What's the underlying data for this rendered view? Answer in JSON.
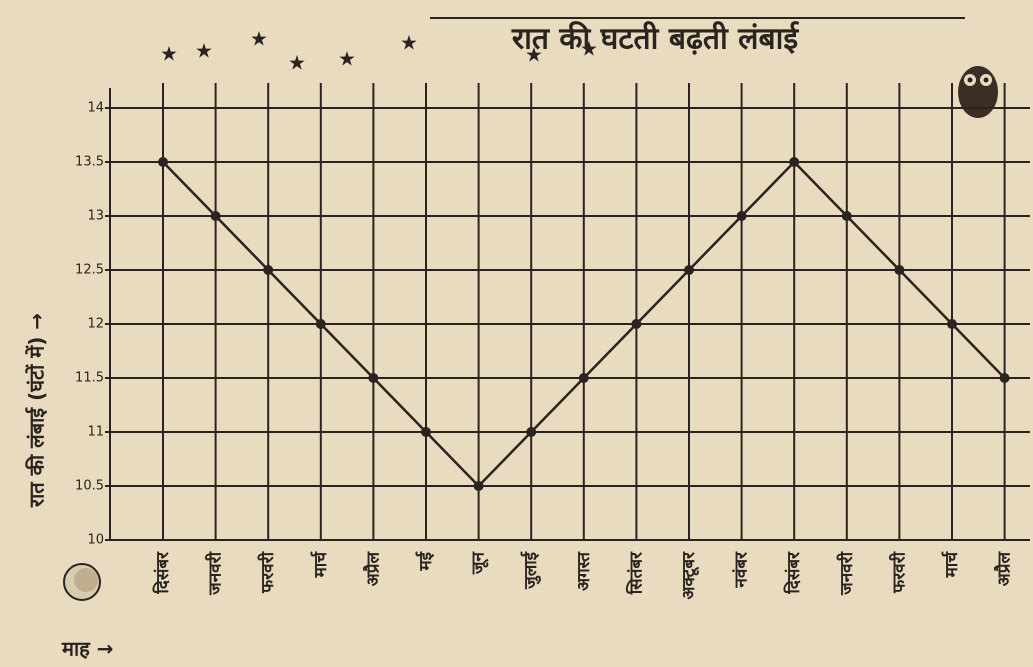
{
  "chart_data": {
    "type": "line",
    "title": "रात की घटती बढ़ती लंबाई",
    "y_label": "रात की लंबाई (घंटों में) →",
    "x_label": "माह →",
    "categories": [
      "दिसंबर",
      "जनवरी",
      "फरवरी",
      "मार्च",
      "अप्रैल",
      "मई",
      "जून",
      "जुलाई",
      "अगस्त",
      "सितंबर",
      "अक्टूबर",
      "नवंबर",
      "दिसंबर",
      "जनवरी",
      "फरवरी",
      "मार्च",
      "अप्रैल"
    ],
    "values": [
      13.5,
      13,
      12.5,
      12,
      11.5,
      11,
      10.5,
      11,
      11.5,
      12,
      12.5,
      13,
      13.5,
      13,
      12.5,
      12,
      11.5
    ],
    "color": "#2a2420",
    "ylim": [
      10,
      14
    ],
    "yticks": [
      10,
      10.5,
      11,
      11.5,
      12,
      12.5,
      13,
      13.5,
      14
    ],
    "grid": true
  }
}
